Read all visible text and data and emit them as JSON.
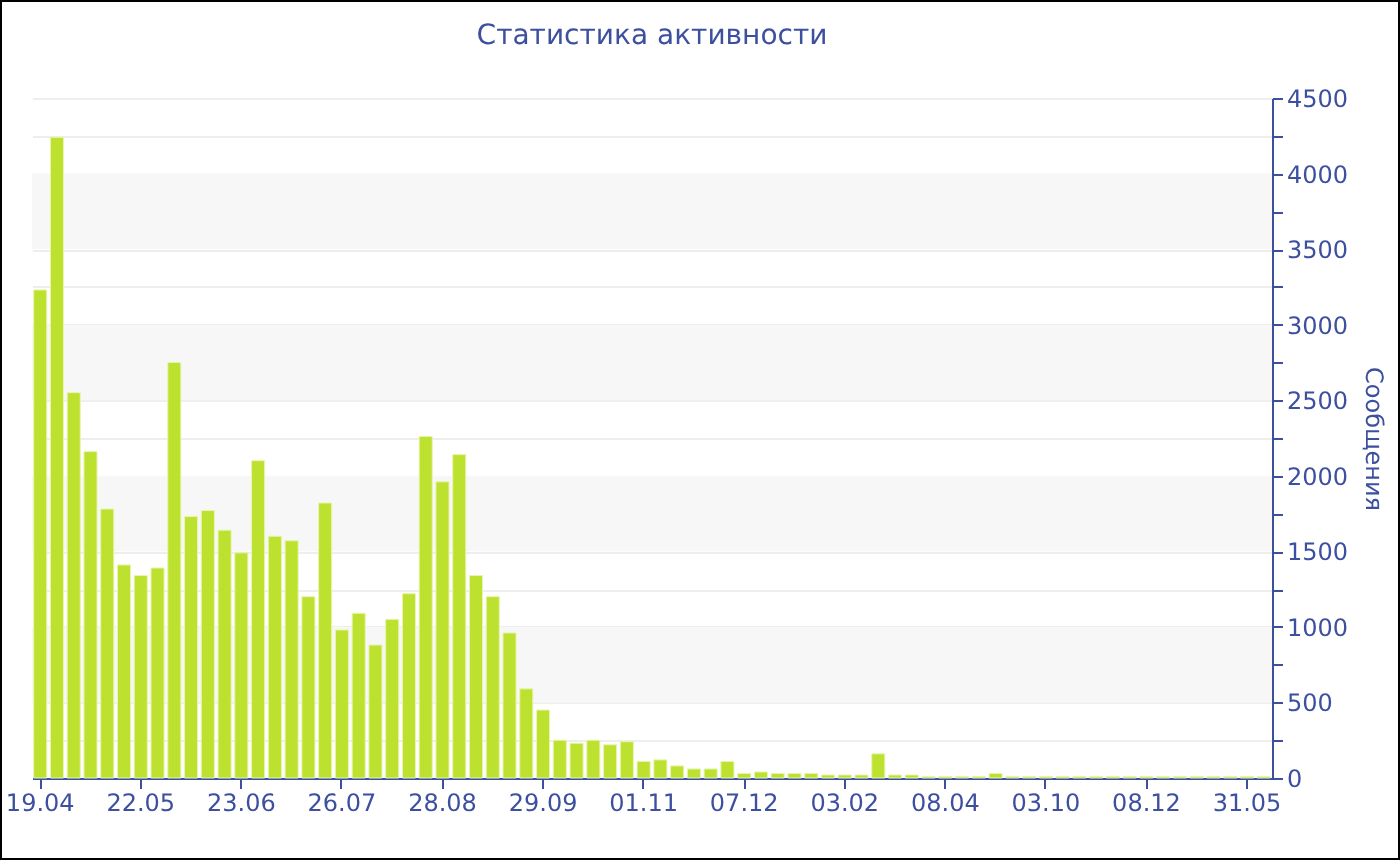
{
  "chart_data": {
    "type": "bar",
    "title": "Статистика активности",
    "ylabel": "Сообщения",
    "categories": [
      "19.04",
      null,
      null,
      null,
      null,
      null,
      "22.05",
      null,
      null,
      null,
      null,
      null,
      "23.06",
      null,
      null,
      null,
      null,
      null,
      "26.07",
      null,
      null,
      null,
      null,
      null,
      "28.08",
      null,
      null,
      null,
      null,
      null,
      "29.09",
      null,
      null,
      null,
      null,
      null,
      "01.11",
      null,
      null,
      null,
      null,
      null,
      "07.12",
      null,
      null,
      null,
      null,
      null,
      "03.02",
      null,
      null,
      null,
      null,
      null,
      "08.04",
      null,
      null,
      null,
      null,
      null,
      "03.10",
      null,
      null,
      null,
      null,
      null,
      "08.12",
      null,
      null,
      null,
      null,
      null,
      "31.05",
      null
    ],
    "values": [
      3230,
      4240,
      2550,
      2160,
      1780,
      1410,
      1340,
      1390,
      2750,
      1730,
      1770,
      1640,
      1490,
      2100,
      1600,
      1570,
      1200,
      1820,
      980,
      1090,
      880,
      1050,
      1220,
      2260,
      1960,
      2140,
      1340,
      1200,
      960,
      590,
      450,
      250,
      230,
      250,
      220,
      240,
      110,
      120,
      80,
      60,
      60,
      110,
      30,
      40,
      30,
      30,
      30,
      20,
      20,
      20,
      160,
      20,
      20,
      10,
      10,
      10,
      10,
      30,
      10,
      10,
      10,
      10,
      10,
      10,
      10,
      10,
      10,
      10,
      10,
      10,
      10,
      10,
      10,
      10
    ],
    "color": "#bde12f",
    "ylim": [
      0,
      4500
    ],
    "yticks": [
      0,
      {
        "value": 250,
        "label": null
      },
      500,
      {
        "value": 750,
        "label": null
      },
      1000,
      {
        "value": 1250,
        "label": null
      },
      1500,
      {
        "value": 1750,
        "label": null
      },
      2000,
      {
        "value": 2250,
        "label": null
      },
      2500,
      {
        "value": 2750,
        "label": null
      },
      3000,
      {
        "value": 3250,
        "label": null
      },
      3500,
      {
        "value": 3750,
        "label": null
      },
      4000,
      {
        "value": 4250,
        "label": null
      },
      4500
    ],
    "grid": "y"
  }
}
